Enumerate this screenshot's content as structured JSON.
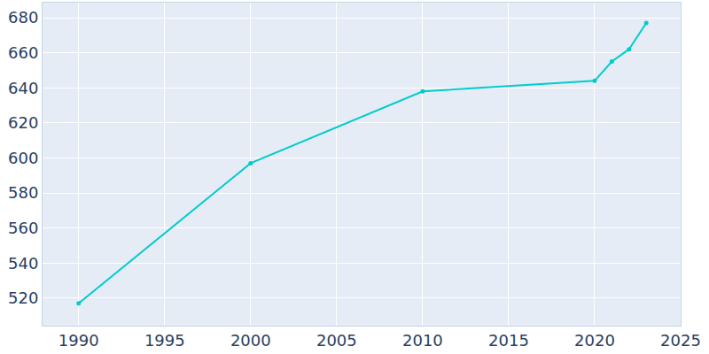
{
  "chart_data": {
    "type": "line",
    "x": [
      1990,
      2000,
      2010,
      2020,
      2021,
      2022,
      2023
    ],
    "values": [
      517,
      597,
      638,
      644,
      655,
      662,
      677
    ],
    "color": "#00cccc",
    "marker": "circle",
    "xlim": [
      1987.9,
      2025
    ],
    "xticks": [
      1990,
      1995,
      2000,
      2005,
      2010,
      2015,
      2020,
      2025
    ],
    "ylim": [
      504.3,
      688.6
    ],
    "yticks": [
      520,
      540,
      560,
      580,
      600,
      620,
      640,
      660,
      680
    ],
    "grid": true
  }
}
